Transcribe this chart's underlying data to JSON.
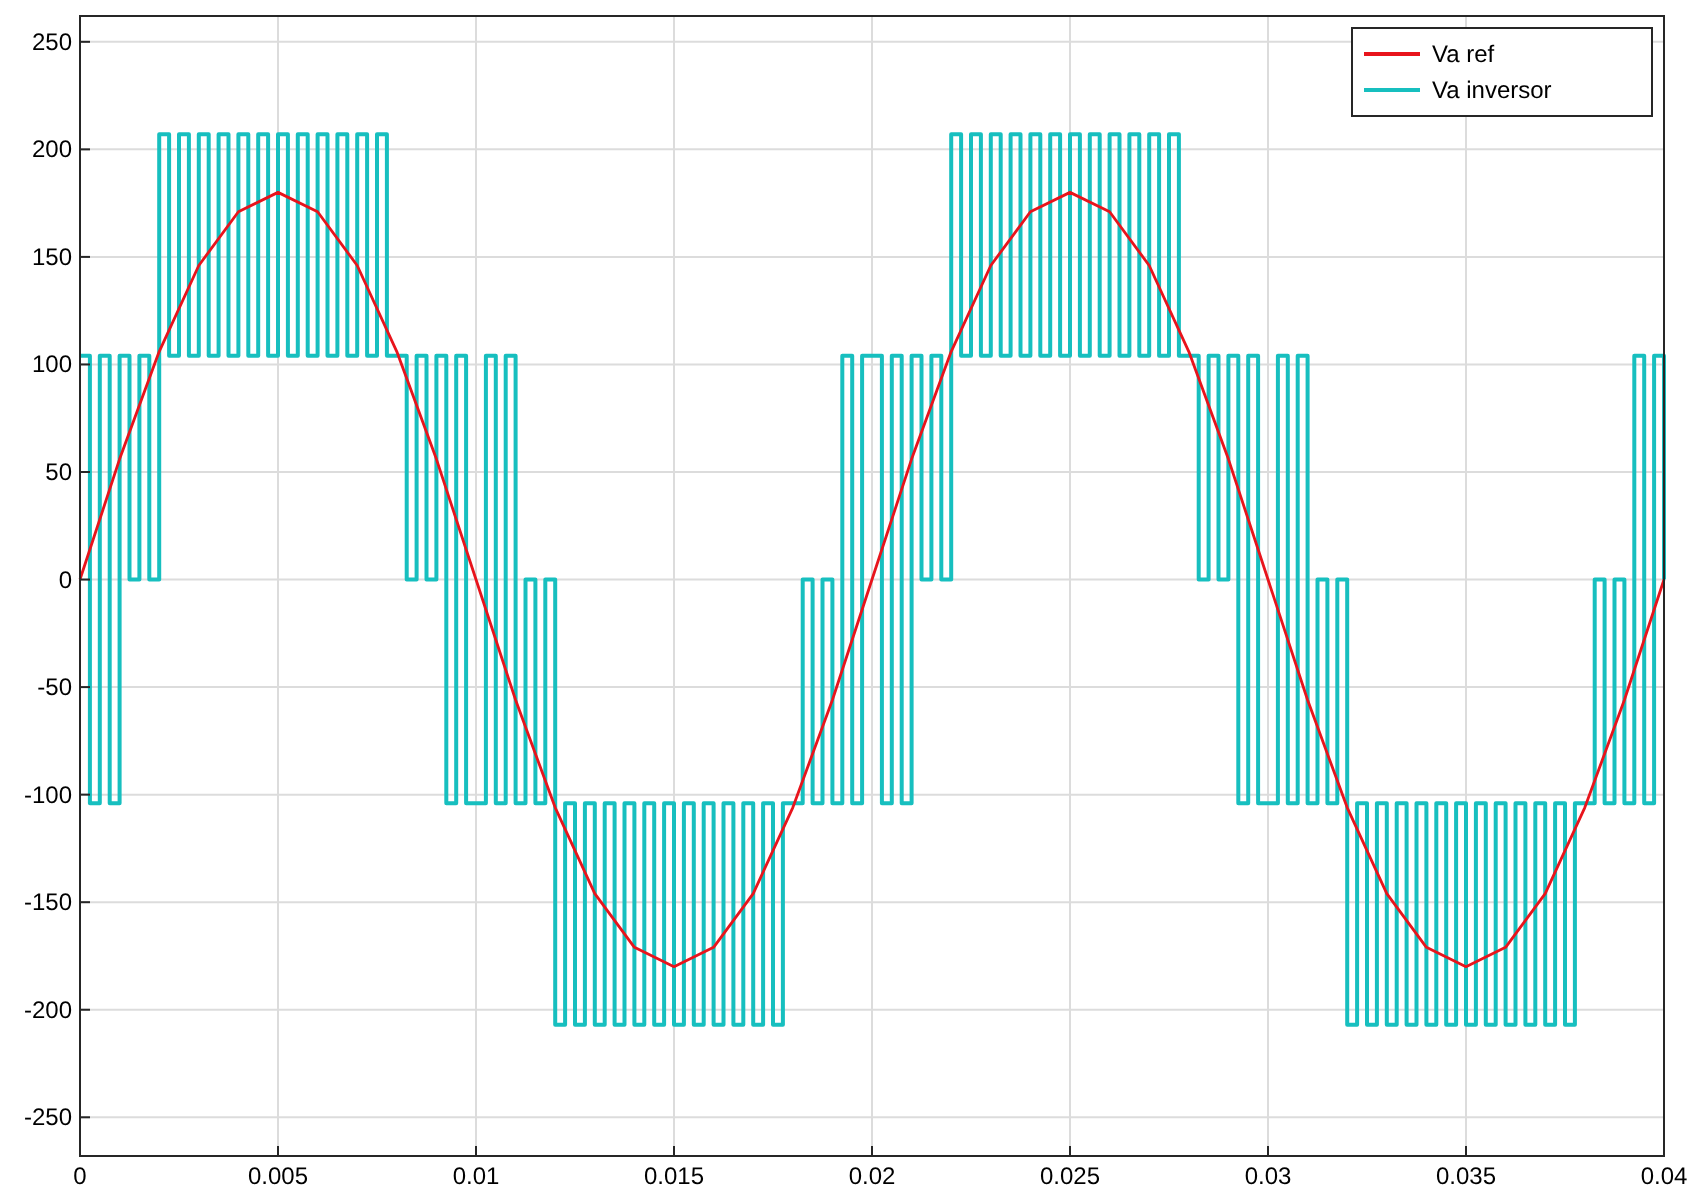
{
  "chart_data": {
    "type": "line",
    "xlim": [
      0,
      0.04
    ],
    "ylim": [
      -268,
      262
    ],
    "xticks": [
      0,
      0.005,
      0.01,
      0.015,
      0.02,
      0.025,
      0.03,
      0.035,
      0.04
    ],
    "yticks": [
      -250,
      -200,
      -150,
      -100,
      -50,
      0,
      50,
      100,
      150,
      200,
      250
    ],
    "grid": true,
    "legend": "top right",
    "series": [
      {
        "name": "Va ref",
        "color": "#e8141c",
        "x": [
          0,
          0.001,
          0.002,
          0.003,
          0.004,
          0.005,
          0.006,
          0.007,
          0.008,
          0.009,
          0.01,
          0.011,
          0.012,
          0.013,
          0.014,
          0.015,
          0.016,
          0.017,
          0.018,
          0.019,
          0.02,
          0.021,
          0.022,
          0.023,
          0.024,
          0.025,
          0.026,
          0.027,
          0.028,
          0.029,
          0.03,
          0.031,
          0.032,
          0.033,
          0.034,
          0.035,
          0.036,
          0.037,
          0.038,
          0.039,
          0.04
        ],
        "values": [
          0,
          56,
          106,
          146,
          171,
          180,
          171,
          146,
          106,
          56,
          0,
          -56,
          -106,
          -146,
          -171,
          -180,
          -171,
          -146,
          -106,
          -56,
          0,
          56,
          106,
          146,
          171,
          180,
          171,
          146,
          106,
          56,
          0,
          -56,
          -106,
          -146,
          -171,
          -180,
          -171,
          -146,
          -106,
          -56,
          0
        ]
      },
      {
        "name": "Va inversor",
        "type": "step",
        "color": "#17bfbf",
        "x": [
          0,
          0.00025,
          0.0005,
          0.00075,
          0.001,
          0.00125,
          0.0015,
          0.00175,
          0.002,
          0.00225,
          0.0025,
          0.00275,
          0.003,
          0.00325,
          0.0035,
          0.00375,
          0.004,
          0.00425,
          0.0045,
          0.00475,
          0.005,
          0.00525,
          0.0055,
          0.00575,
          0.006,
          0.00625,
          0.0065,
          0.00675,
          0.007,
          0.00725,
          0.0075,
          0.00775,
          0.008,
          0.00825,
          0.0085,
          0.00875,
          0.009,
          0.00925,
          0.0095,
          0.00975,
          0.01,
          0.01025,
          0.0105,
          0.01075,
          0.011,
          0.01125,
          0.0115,
          0.01175,
          0.012,
          0.01225,
          0.0125,
          0.01275,
          0.013,
          0.01325,
          0.0135,
          0.01375,
          0.014,
          0.01425,
          0.0145,
          0.01475,
          0.015,
          0.01525,
          0.0155,
          0.01575,
          0.016,
          0.01625,
          0.0165,
          0.01675,
          0.017,
          0.01725,
          0.0175,
          0.01775,
          0.018,
          0.01825,
          0.0185,
          0.01875,
          0.019,
          0.01925,
          0.0195,
          0.01975,
          0.02,
          0.02025,
          0.0205,
          0.02075,
          0.021,
          0.02125,
          0.0215,
          0.02175,
          0.022,
          0.02225,
          0.0225,
          0.02275,
          0.023,
          0.02325,
          0.0235,
          0.02375,
          0.024,
          0.02425,
          0.0245,
          0.02475,
          0.025,
          0.02525,
          0.0255,
          0.02575,
          0.026,
          0.02625,
          0.0265,
          0.02675,
          0.027,
          0.02725,
          0.0275,
          0.02775,
          0.028,
          0.02825,
          0.0285,
          0.02875,
          0.029,
          0.02925,
          0.0295,
          0.02975,
          0.03,
          0.03025,
          0.0305,
          0.03075,
          0.031,
          0.03125,
          0.0315,
          0.03175,
          0.032,
          0.03225,
          0.0325,
          0.03275,
          0.033,
          0.03325,
          0.0335,
          0.03375,
          0.034,
          0.03425,
          0.0345,
          0.03475,
          0.035,
          0.03525,
          0.0355,
          0.03575,
          0.036,
          0.03625,
          0.0365,
          0.03675,
          0.037,
          0.03725,
          0.0375,
          0.03775,
          0.038,
          0.03825,
          0.0385,
          0.03875,
          0.039,
          0.03925,
          0.0395,
          0.03975,
          0.04
        ],
        "values": [
          104,
          -104,
          104,
          -104,
          104,
          0,
          104,
          0,
          207,
          104,
          207,
          104,
          207,
          104,
          207,
          104,
          207,
          104,
          207,
          104,
          207,
          104,
          207,
          104,
          207,
          104,
          207,
          104,
          207,
          104,
          207,
          104,
          104,
          0,
          104,
          0,
          104,
          -104,
          104,
          -104,
          -104,
          104,
          -104,
          104,
          -104,
          0,
          -104,
          0,
          -207,
          -104,
          -207,
          -104,
          -207,
          -104,
          -207,
          -104,
          -207,
          -104,
          -207,
          -104,
          -207,
          -104,
          -207,
          -104,
          -207,
          -104,
          -207,
          -104,
          -207,
          -104,
          -207,
          -104,
          -104,
          0,
          -104,
          0,
          -104,
          104,
          -104,
          104,
          104,
          -104,
          104,
          -104,
          104,
          0,
          104,
          0,
          207,
          104,
          207,
          104,
          207,
          104,
          207,
          104,
          207,
          104,
          207,
          104,
          207,
          104,
          207,
          104,
          207,
          104,
          207,
          104,
          207,
          104,
          207,
          104,
          104,
          0,
          104,
          0,
          104,
          -104,
          104,
          -104,
          -104,
          104,
          -104,
          104,
          -104,
          0,
          -104,
          0,
          -207,
          -104,
          -207,
          -104,
          -207,
          -104,
          -207,
          -104,
          -207,
          -104,
          -207,
          -104,
          -207,
          -104,
          -207,
          -104,
          -207,
          -104,
          -207,
          -104,
          -207,
          -104,
          -207,
          -104,
          -104,
          0,
          -104,
          0,
          -104,
          104,
          -104,
          104,
          0
        ]
      }
    ]
  }
}
